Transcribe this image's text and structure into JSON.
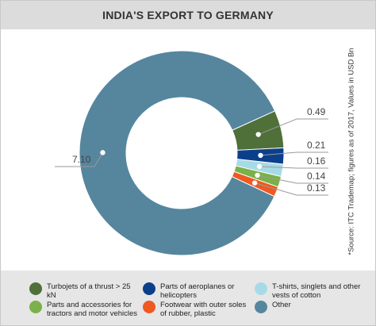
{
  "header": {
    "title": "INDIA'S EXPORT TO GERMANY"
  },
  "source_note": "*Source: ITC Trademap; figures as of 2017, Values in USD Bn",
  "colors": {
    "turbojets": "#4f7039",
    "aeroplane_parts": "#0b3f8c",
    "tshirts": "#a6dbe6",
    "tractor_parts": "#7bb14a",
    "footwear": "#ee5a22",
    "other": "#55869e"
  },
  "chart_data": {
    "type": "pie",
    "title": "INDIA'S EXPORT TO GERMANY",
    "donut": true,
    "unit": "USD Bn",
    "categories": [
      "Turbojets of a thrust > 25 kN",
      "Parts of aeroplanes or helicopters",
      "T-shirts, singlets and other vests of cotton",
      "Parts and accessories for tractors and motor vehicles",
      "Footwear with outer soles of rubber, plastic",
      "Other"
    ],
    "values": [
      0.49,
      0.21,
      0.16,
      0.14,
      0.13,
      7.1
    ],
    "value_labels": [
      "0.49",
      "0.21",
      "0.16",
      "0.14",
      "0.13",
      "7.10"
    ],
    "colors": [
      "#4f7039",
      "#0b3f8c",
      "#a6dbe6",
      "#7bb14a",
      "#ee5a22",
      "#55869e"
    ]
  },
  "legend": {
    "items": [
      {
        "label": "Turbojets of a thrust > 25 kN",
        "color": "#4f7039"
      },
      {
        "label": "Parts of aeroplanes or helicopters",
        "color": "#0b3f8c"
      },
      {
        "label": "T-shirts, singlets and other vests of cotton",
        "color": "#a6dbe6"
      },
      {
        "label": "Parts and accessories for tractors and motor vehicles",
        "color": "#7bb14a"
      },
      {
        "label": "Footwear with outer soles of rubber, plastic",
        "color": "#ee5a22"
      },
      {
        "label": "Other",
        "color": "#55869e"
      }
    ]
  }
}
